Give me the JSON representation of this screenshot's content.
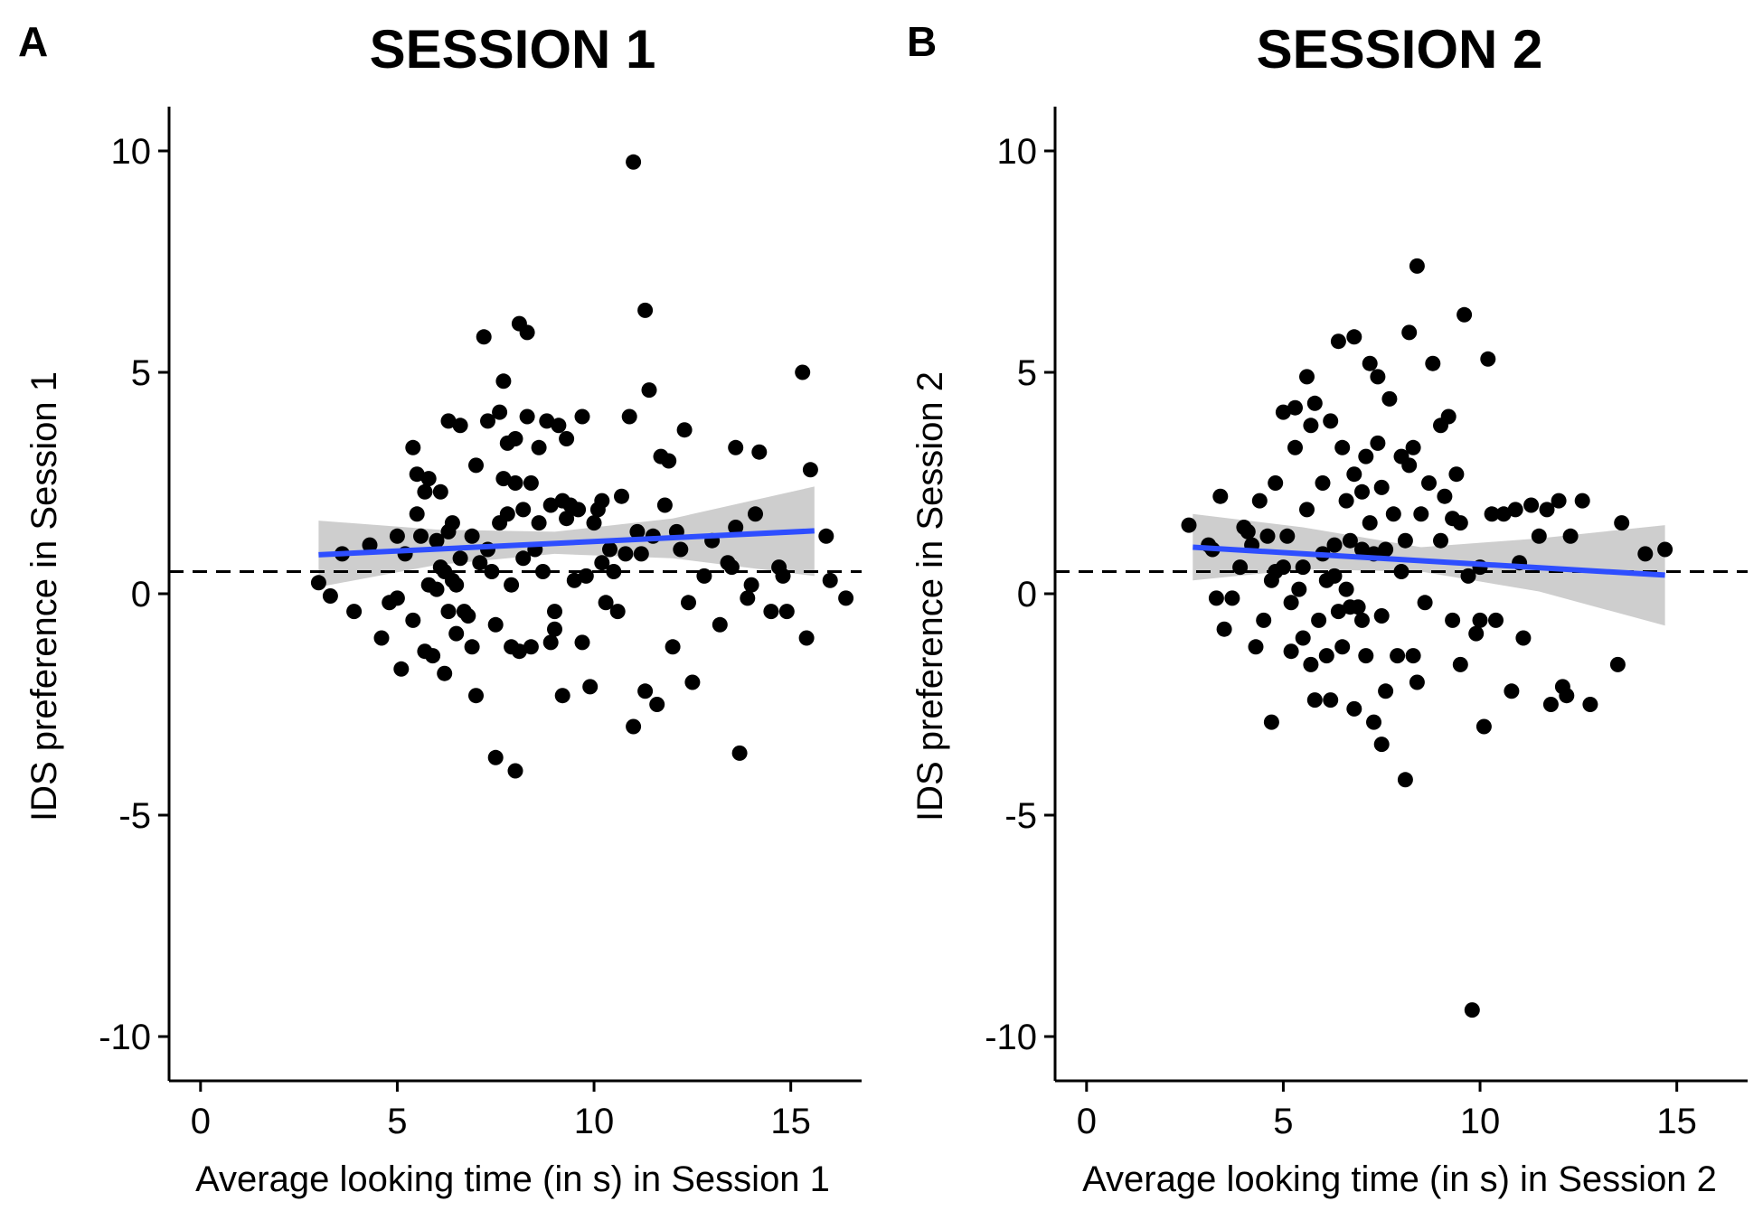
{
  "chart_data": [
    {
      "type": "scatter",
      "panel_label": "A",
      "title": "SESSION 1",
      "xlabel": "Average looking time (in s) in Session 1",
      "ylabel": "IDS preference in Session 1",
      "xlim": [
        -0.8,
        16.8
      ],
      "ylim": [
        -11,
        11
      ],
      "xticks": [
        0,
        5,
        10,
        15
      ],
      "yticks": [
        -10,
        -5,
        0,
        5,
        10
      ],
      "xtick_labels": [
        "0",
        "5",
        "10",
        "15"
      ],
      "ytick_labels": [
        "-10",
        "-5",
        "0",
        "5",
        "10"
      ],
      "reference_line": {
        "y": 0.5,
        "style": "dashed",
        "color": "#000000"
      },
      "fit_line": {
        "x": [
          3.0,
          15.6
        ],
        "y": [
          0.88,
          1.42
        ],
        "color": "#2E4EFF"
      },
      "confidence_band": {
        "x": [
          3.0,
          6.0,
          9.0,
          12.0,
          15.6
        ],
        "lower": [
          0.15,
          0.65,
          0.9,
          0.8,
          0.4
        ],
        "upper": [
          1.65,
          1.45,
          1.4,
          1.7,
          2.42
        ],
        "color": "#BEBEBE"
      },
      "point_color": "#000000",
      "grid": false,
      "points": [
        [
          3.0,
          0.25
        ],
        [
          3.3,
          -0.05
        ],
        [
          3.6,
          0.9
        ],
        [
          3.9,
          -0.4
        ],
        [
          4.3,
          1.1
        ],
        [
          4.6,
          -1.0
        ],
        [
          4.8,
          -0.2
        ],
        [
          5.0,
          -0.1
        ],
        [
          5.0,
          1.3
        ],
        [
          5.1,
          -1.7
        ],
        [
          5.2,
          0.9
        ],
        [
          5.4,
          3.3
        ],
        [
          5.4,
          -0.6
        ],
        [
          5.5,
          2.7
        ],
        [
          5.5,
          1.8
        ],
        [
          5.6,
          1.3
        ],
        [
          5.7,
          2.3
        ],
        [
          5.7,
          -1.3
        ],
        [
          5.8,
          0.2
        ],
        [
          5.8,
          2.6
        ],
        [
          5.9,
          -1.4
        ],
        [
          6.0,
          0.1
        ],
        [
          6.0,
          1.2
        ],
        [
          6.1,
          0.6
        ],
        [
          6.1,
          2.3
        ],
        [
          6.2,
          -1.8
        ],
        [
          6.2,
          0.5
        ],
        [
          6.3,
          1.4
        ],
        [
          6.3,
          3.9
        ],
        [
          6.3,
          -0.4
        ],
        [
          6.4,
          1.6
        ],
        [
          6.4,
          0.3
        ],
        [
          6.5,
          -0.9
        ],
        [
          6.5,
          0.2
        ],
        [
          6.6,
          0.8
        ],
        [
          6.6,
          3.8
        ],
        [
          6.7,
          -0.4
        ],
        [
          6.8,
          -0.5
        ],
        [
          6.9,
          1.3
        ],
        [
          6.9,
          -1.2
        ],
        [
          7.0,
          -2.3
        ],
        [
          7.0,
          2.9
        ],
        [
          7.1,
          0.7
        ],
        [
          7.2,
          5.8
        ],
        [
          7.3,
          1.0
        ],
        [
          7.3,
          3.9
        ],
        [
          7.4,
          0.5
        ],
        [
          7.5,
          -3.7
        ],
        [
          7.5,
          -0.7
        ],
        [
          7.6,
          1.6
        ],
        [
          7.6,
          4.1
        ],
        [
          7.7,
          4.8
        ],
        [
          7.7,
          2.6
        ],
        [
          7.8,
          3.4
        ],
        [
          7.8,
          1.8
        ],
        [
          7.9,
          -1.2
        ],
        [
          7.9,
          0.2
        ],
        [
          8.0,
          2.5
        ],
        [
          8.0,
          -4.0
        ],
        [
          8.0,
          3.5
        ],
        [
          8.1,
          6.1
        ],
        [
          8.1,
          -1.3
        ],
        [
          8.2,
          1.9
        ],
        [
          8.2,
          0.8
        ],
        [
          8.3,
          5.9
        ],
        [
          8.3,
          4.0
        ],
        [
          8.4,
          2.5
        ],
        [
          8.4,
          -1.2
        ],
        [
          8.5,
          1.0
        ],
        [
          8.6,
          3.3
        ],
        [
          8.6,
          1.6
        ],
        [
          8.7,
          0.5
        ],
        [
          8.8,
          3.9
        ],
        [
          8.9,
          -1.1
        ],
        [
          8.9,
          2.0
        ],
        [
          9.0,
          -0.8
        ],
        [
          9.0,
          -0.4
        ],
        [
          9.1,
          3.8
        ],
        [
          9.2,
          -2.3
        ],
        [
          9.2,
          2.1
        ],
        [
          9.3,
          3.5
        ],
        [
          9.3,
          1.7
        ],
        [
          9.4,
          2.0
        ],
        [
          9.5,
          0.3
        ],
        [
          9.6,
          1.9
        ],
        [
          9.7,
          4.0
        ],
        [
          9.7,
          -1.1
        ],
        [
          9.8,
          0.4
        ],
        [
          9.9,
          -2.1
        ],
        [
          10.0,
          1.6
        ],
        [
          10.1,
          1.9
        ],
        [
          10.2,
          2.1
        ],
        [
          10.2,
          0.7
        ],
        [
          10.3,
          -0.2
        ],
        [
          10.4,
          1.0
        ],
        [
          10.5,
          0.5
        ],
        [
          10.6,
          -0.4
        ],
        [
          10.7,
          2.2
        ],
        [
          10.8,
          0.9
        ],
        [
          10.9,
          4.0
        ],
        [
          11.0,
          9.75
        ],
        [
          11.0,
          -3.0
        ],
        [
          11.1,
          1.4
        ],
        [
          11.2,
          0.9
        ],
        [
          11.3,
          -2.2
        ],
        [
          11.3,
          6.4
        ],
        [
          11.4,
          4.6
        ],
        [
          11.5,
          1.3
        ],
        [
          11.6,
          -2.5
        ],
        [
          11.7,
          3.1
        ],
        [
          11.8,
          2.0
        ],
        [
          11.9,
          3.0
        ],
        [
          12.0,
          -1.2
        ],
        [
          12.1,
          1.4
        ],
        [
          12.2,
          1.0
        ],
        [
          12.3,
          3.7
        ],
        [
          12.4,
          -0.2
        ],
        [
          12.5,
          -2.0
        ],
        [
          12.8,
          0.4
        ],
        [
          13.0,
          1.2
        ],
        [
          13.2,
          -0.7
        ],
        [
          13.4,
          0.7
        ],
        [
          13.5,
          0.6
        ],
        [
          13.6,
          3.3
        ],
        [
          13.6,
          1.5
        ],
        [
          13.7,
          -3.6
        ],
        [
          13.9,
          -0.1
        ],
        [
          14.0,
          0.2
        ],
        [
          14.1,
          1.8
        ],
        [
          14.2,
          3.2
        ],
        [
          14.5,
          -0.4
        ],
        [
          14.7,
          0.6
        ],
        [
          14.8,
          0.4
        ],
        [
          14.9,
          -0.4
        ],
        [
          15.3,
          5.0
        ],
        [
          15.4,
          -1.0
        ],
        [
          15.5,
          2.8
        ],
        [
          15.9,
          1.3
        ],
        [
          16.0,
          0.3
        ],
        [
          16.4,
          -0.1
        ]
      ]
    },
    {
      "type": "scatter",
      "panel_label": "B",
      "title": "SESSION 2",
      "xlabel": "Average looking time (in s) in Session 2",
      "ylabel": "IDS preference in Session 2",
      "xlim": [
        -0.8,
        16.8
      ],
      "ylim": [
        -11,
        11
      ],
      "xticks": [
        0,
        5,
        10,
        15
      ],
      "yticks": [
        -10,
        -5,
        0,
        5,
        10
      ],
      "xtick_labels": [
        "0",
        "5",
        "10",
        "15"
      ],
      "ytick_labels": [
        "-10",
        "-5",
        "0",
        "5",
        "10"
      ],
      "reference_line": {
        "y": 0.5,
        "style": "dashed",
        "color": "#000000"
      },
      "fit_line": {
        "x": [
          2.7,
          14.7
        ],
        "y": [
          1.05,
          0.42
        ],
        "color": "#2E4EFF"
      },
      "confidence_band": {
        "x": [
          2.7,
          5.5,
          8.5,
          11.5,
          14.7
        ],
        "lower": [
          0.3,
          0.55,
          0.5,
          0.05,
          -0.72
        ],
        "upper": [
          1.8,
          1.5,
          1.05,
          1.25,
          1.55
        ],
        "color": "#BEBEBE"
      },
      "point_color": "#000000",
      "grid": false,
      "points": [
        [
          2.6,
          1.55
        ],
        [
          3.1,
          1.1
        ],
        [
          3.2,
          1.0
        ],
        [
          3.3,
          -0.1
        ],
        [
          3.4,
          2.2
        ],
        [
          3.5,
          -0.8
        ],
        [
          3.7,
          -0.1
        ],
        [
          3.9,
          0.6
        ],
        [
          4.0,
          1.5
        ],
        [
          4.1,
          1.4
        ],
        [
          4.2,
          1.1
        ],
        [
          4.3,
          -1.2
        ],
        [
          4.4,
          2.1
        ],
        [
          4.5,
          -0.6
        ],
        [
          4.6,
          1.3
        ],
        [
          4.7,
          -2.9
        ],
        [
          4.7,
          0.3
        ],
        [
          4.8,
          2.5
        ],
        [
          4.8,
          0.5
        ],
        [
          5.0,
          4.1
        ],
        [
          5.0,
          0.6
        ],
        [
          5.1,
          1.3
        ],
        [
          5.2,
          -0.2
        ],
        [
          5.2,
          -1.3
        ],
        [
          5.3,
          4.2
        ],
        [
          5.3,
          3.3
        ],
        [
          5.4,
          0.1
        ],
        [
          5.5,
          0.6
        ],
        [
          5.5,
          -1.0
        ],
        [
          5.6,
          1.9
        ],
        [
          5.6,
          4.9
        ],
        [
          5.7,
          3.8
        ],
        [
          5.7,
          -1.6
        ],
        [
          5.8,
          -2.4
        ],
        [
          5.8,
          4.3
        ],
        [
          5.9,
          -0.6
        ],
        [
          6.0,
          0.9
        ],
        [
          6.0,
          2.5
        ],
        [
          6.1,
          -1.4
        ],
        [
          6.1,
          0.3
        ],
        [
          6.2,
          -2.4
        ],
        [
          6.2,
          3.9
        ],
        [
          6.3,
          1.1
        ],
        [
          6.3,
          0.4
        ],
        [
          6.4,
          -0.4
        ],
        [
          6.4,
          5.7
        ],
        [
          6.5,
          -1.2
        ],
        [
          6.5,
          3.3
        ],
        [
          6.6,
          2.1
        ],
        [
          6.6,
          0.1
        ],
        [
          6.7,
          1.2
        ],
        [
          6.7,
          -0.3
        ],
        [
          6.8,
          -2.6
        ],
        [
          6.8,
          2.7
        ],
        [
          6.8,
          5.8
        ],
        [
          6.9,
          -0.3
        ],
        [
          7.0,
          1.0
        ],
        [
          7.0,
          -0.6
        ],
        [
          7.0,
          2.3
        ],
        [
          7.1,
          3.1
        ],
        [
          7.1,
          -1.4
        ],
        [
          7.2,
          5.2
        ],
        [
          7.2,
          1.6
        ],
        [
          7.3,
          -2.9
        ],
        [
          7.3,
          0.9
        ],
        [
          7.4,
          4.9
        ],
        [
          7.4,
          3.4
        ],
        [
          7.5,
          -3.4
        ],
        [
          7.5,
          -0.5
        ],
        [
          7.5,
          2.4
        ],
        [
          7.6,
          1.0
        ],
        [
          7.6,
          -2.2
        ],
        [
          7.7,
          4.4
        ],
        [
          7.8,
          1.8
        ],
        [
          7.9,
          -1.4
        ],
        [
          8.0,
          0.5
        ],
        [
          8.0,
          3.1
        ],
        [
          8.1,
          1.2
        ],
        [
          8.1,
          -4.2
        ],
        [
          8.2,
          5.9
        ],
        [
          8.2,
          2.9
        ],
        [
          8.3,
          -1.4
        ],
        [
          8.3,
          3.3
        ],
        [
          8.4,
          -2.0
        ],
        [
          8.4,
          7.4
        ],
        [
          8.5,
          1.8
        ],
        [
          8.6,
          -0.2
        ],
        [
          8.7,
          2.5
        ],
        [
          8.8,
          5.2
        ],
        [
          9.0,
          3.8
        ],
        [
          9.0,
          1.2
        ],
        [
          9.1,
          2.2
        ],
        [
          9.2,
          4.0
        ],
        [
          9.3,
          1.7
        ],
        [
          9.3,
          -0.6
        ],
        [
          9.4,
          2.7
        ],
        [
          9.5,
          -1.6
        ],
        [
          9.5,
          1.6
        ],
        [
          9.6,
          6.3
        ],
        [
          9.7,
          0.4
        ],
        [
          9.8,
          -9.4
        ],
        [
          9.9,
          -0.9
        ],
        [
          10.0,
          -0.6
        ],
        [
          10.0,
          0.6
        ],
        [
          10.1,
          -3.0
        ],
        [
          10.2,
          5.3
        ],
        [
          10.3,
          1.8
        ],
        [
          10.4,
          -0.6
        ],
        [
          10.6,
          1.8
        ],
        [
          10.8,
          -2.2
        ],
        [
          10.9,
          1.9
        ],
        [
          11.0,
          0.7
        ],
        [
          11.1,
          -1.0
        ],
        [
          11.3,
          2.0
        ],
        [
          11.5,
          1.3
        ],
        [
          11.7,
          1.9
        ],
        [
          11.8,
          -2.5
        ],
        [
          12.0,
          2.1
        ],
        [
          12.1,
          -2.1
        ],
        [
          12.2,
          -2.3
        ],
        [
          12.3,
          1.3
        ],
        [
          12.6,
          2.1
        ],
        [
          12.8,
          -2.5
        ],
        [
          13.5,
          -1.6
        ],
        [
          13.6,
          1.6
        ],
        [
          14.2,
          0.9
        ],
        [
          14.7,
          1.0
        ]
      ]
    }
  ]
}
